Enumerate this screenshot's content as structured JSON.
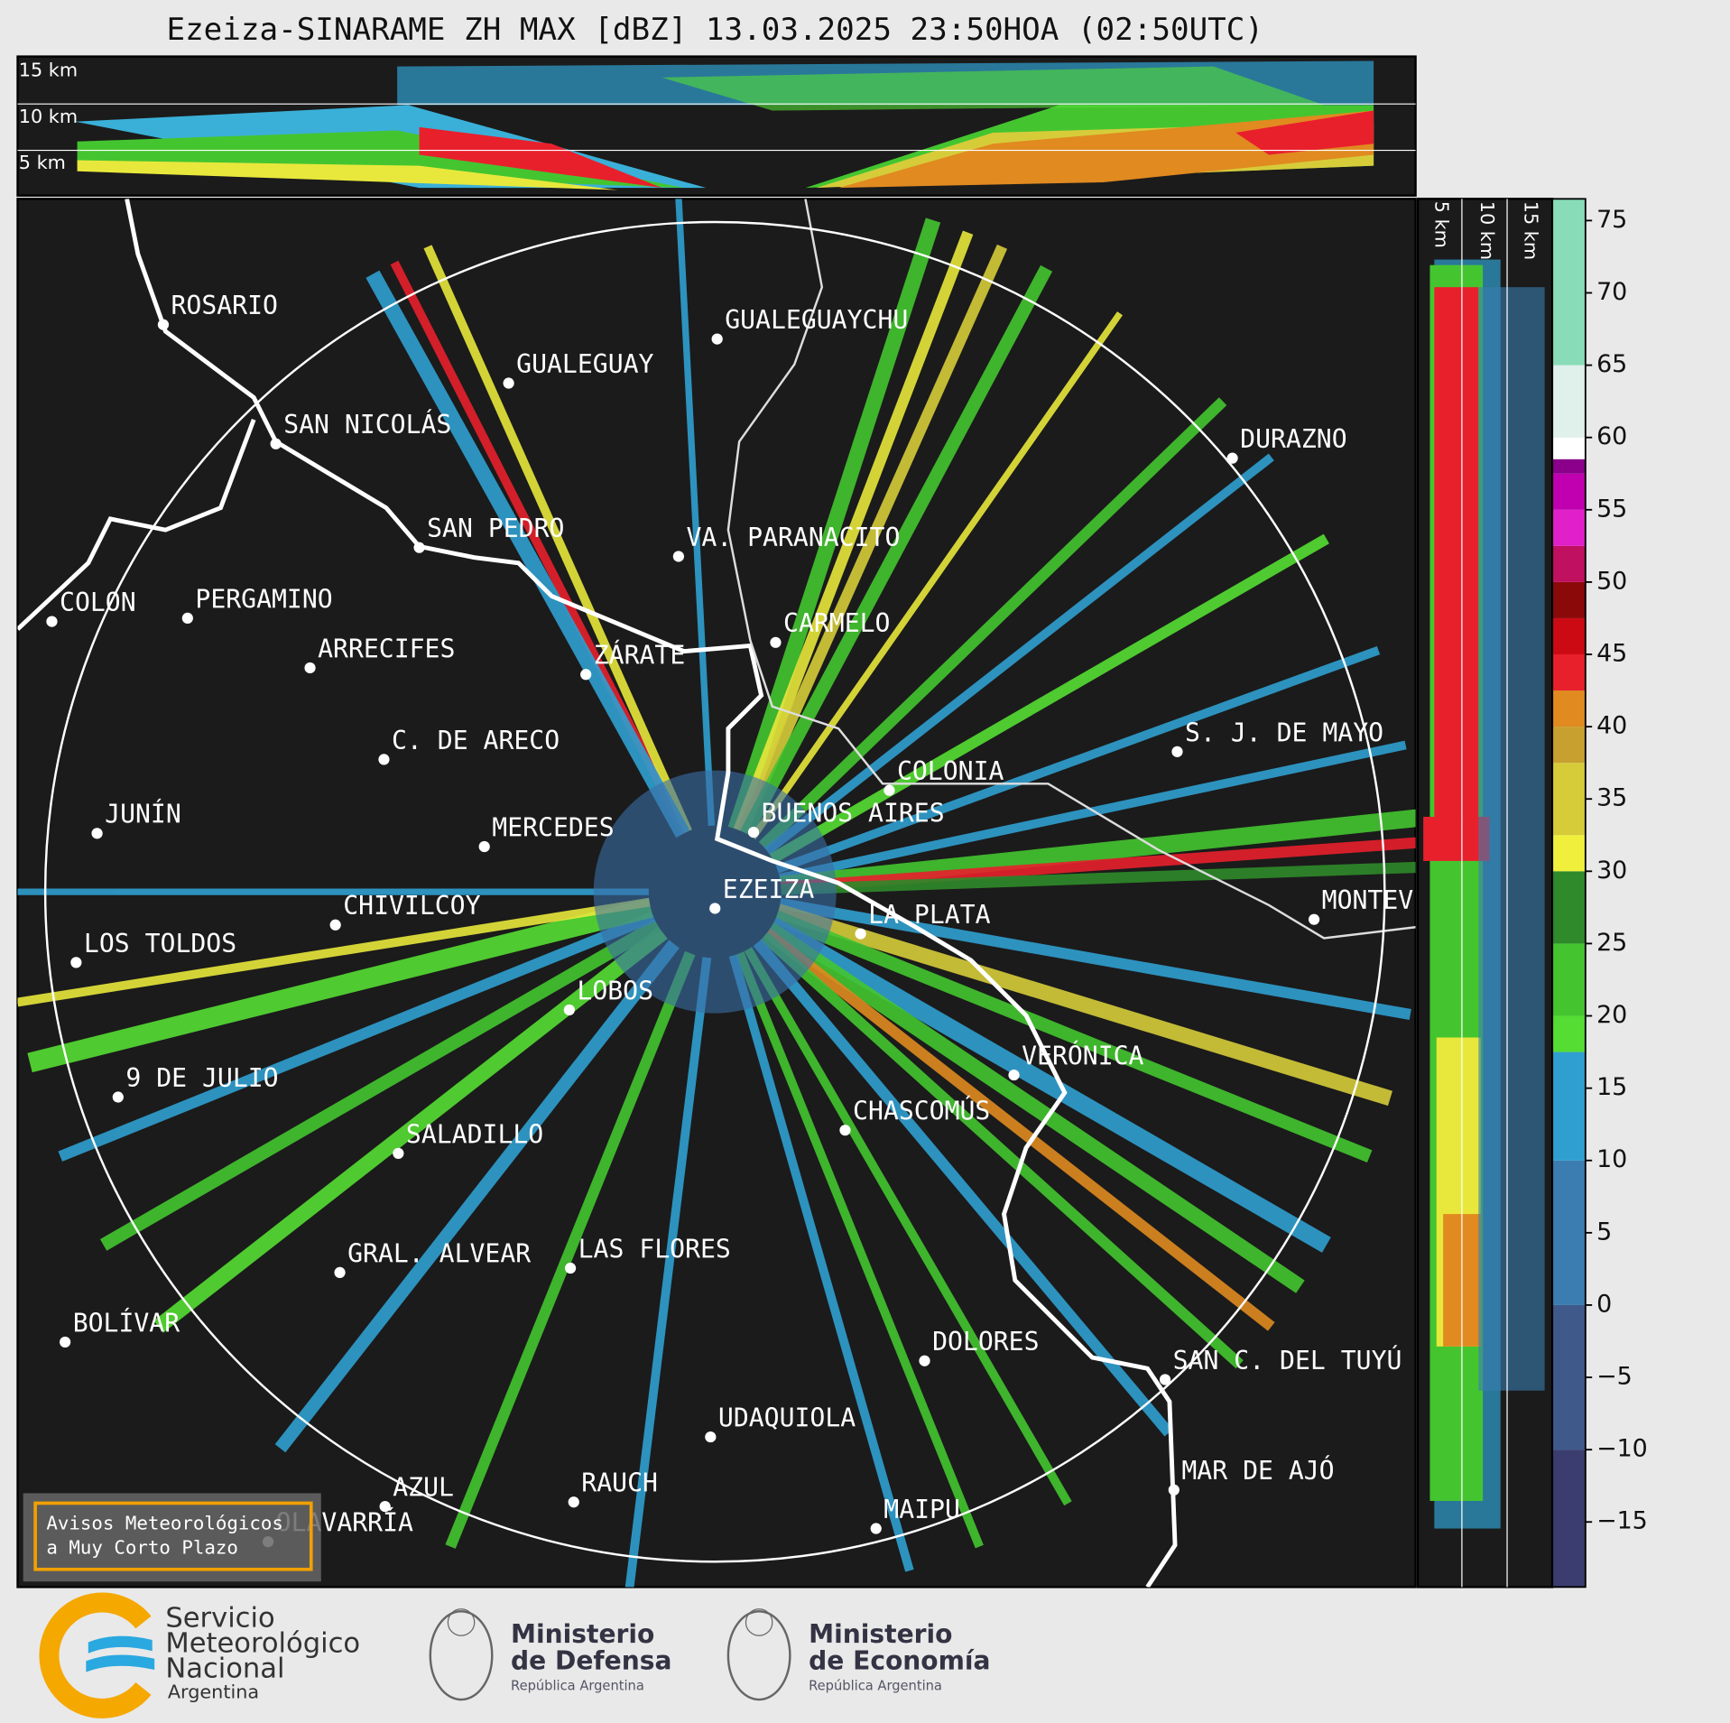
{
  "title": "Ezeiza-SINARAME ZH MAX [dBZ] 13.03.2025 23:50HOA (02:50UTC)",
  "top_section": {
    "labels": [
      "15 km",
      "10 km",
      "5 km"
    ]
  },
  "side_section": {
    "labels": [
      "5 km",
      "10 km",
      "15 km"
    ]
  },
  "cities": [
    "ROSARIO",
    "GUALEGUAYCHU",
    "GUALEGUAY",
    "SAN NICOLÁS",
    "DURAZNO",
    "SAN PEDRO",
    "VA. PARANACITO",
    "COLON",
    "PERGAMINO",
    "CARMELO",
    "ARRECIFES",
    "ZÁRATE",
    "S. J. DE MAYO",
    "C. DE ARECO",
    "COLONIA",
    "BUENOS AIRES",
    "JUNÍN",
    "MERCEDES",
    "EZEIZA",
    "MONTEVIDEO",
    "CHIVILCOY",
    "LA PLATA",
    "LOS TOLDOS",
    "LOBOS",
    "VERÓNICA",
    "9 DE JULIO",
    "CHASCOMÚS",
    "SALADILLO",
    "GRAL. ALVEAR",
    "LAS FLORES",
    "BOLÍVAR",
    "DOLORES",
    "SAN C. DEL TUYÚ",
    "UDAQUIOLA",
    "MAR DE AJÓ",
    "RAUCH",
    "AZUL",
    "OLAVARRÍA",
    "MAIPU"
  ],
  "colorbar": {
    "lim": [
      -19.5,
      76.5
    ],
    "ticks": [
      75,
      70,
      65,
      60,
      55,
      50,
      45,
      40,
      35,
      30,
      25,
      20,
      15,
      10,
      5,
      0,
      {
        "value": -5,
        "label": "−5"
      },
      {
        "value": -10,
        "label": "−10"
      },
      {
        "value": -15,
        "label": "−15"
      }
    ],
    "bins": [
      -19.5,
      -10,
      0,
      10,
      17.5,
      20,
      25,
      30,
      32.5,
      37.5,
      40,
      42.5,
      45,
      47.5,
      50,
      52.5,
      55,
      57.5,
      58.5,
      60,
      65,
      76.5
    ],
    "colors": [
      "#3a3d6e",
      "#3f5a8a",
      "#3b7db0",
      "#2f9fd0",
      "#55dd33",
      "#44c530",
      "#2e8a2a",
      "#f0f03c",
      "#d6cc3a",
      "#c8a030",
      "#e08a20",
      "#e8202c",
      "#cc0a14",
      "#8a0a0a",
      "#c01060",
      "#e020c8",
      "#c000b0",
      "#8a008a",
      "#ffffff",
      "#e0f0ea",
      "#88dcb8"
    ]
  },
  "notice": [
    "Avisos Meteorológicos",
    "a Muy Corto Plazo"
  ],
  "logos": {
    "smn": [
      "Servicio",
      "Meteorológico",
      "Nacional",
      "Argentina"
    ],
    "defensa": [
      "Ministerio",
      "de Defensa",
      "República Argentina"
    ],
    "economia": [
      "Ministerio",
      "de Economía",
      "República Argentina"
    ]
  }
}
